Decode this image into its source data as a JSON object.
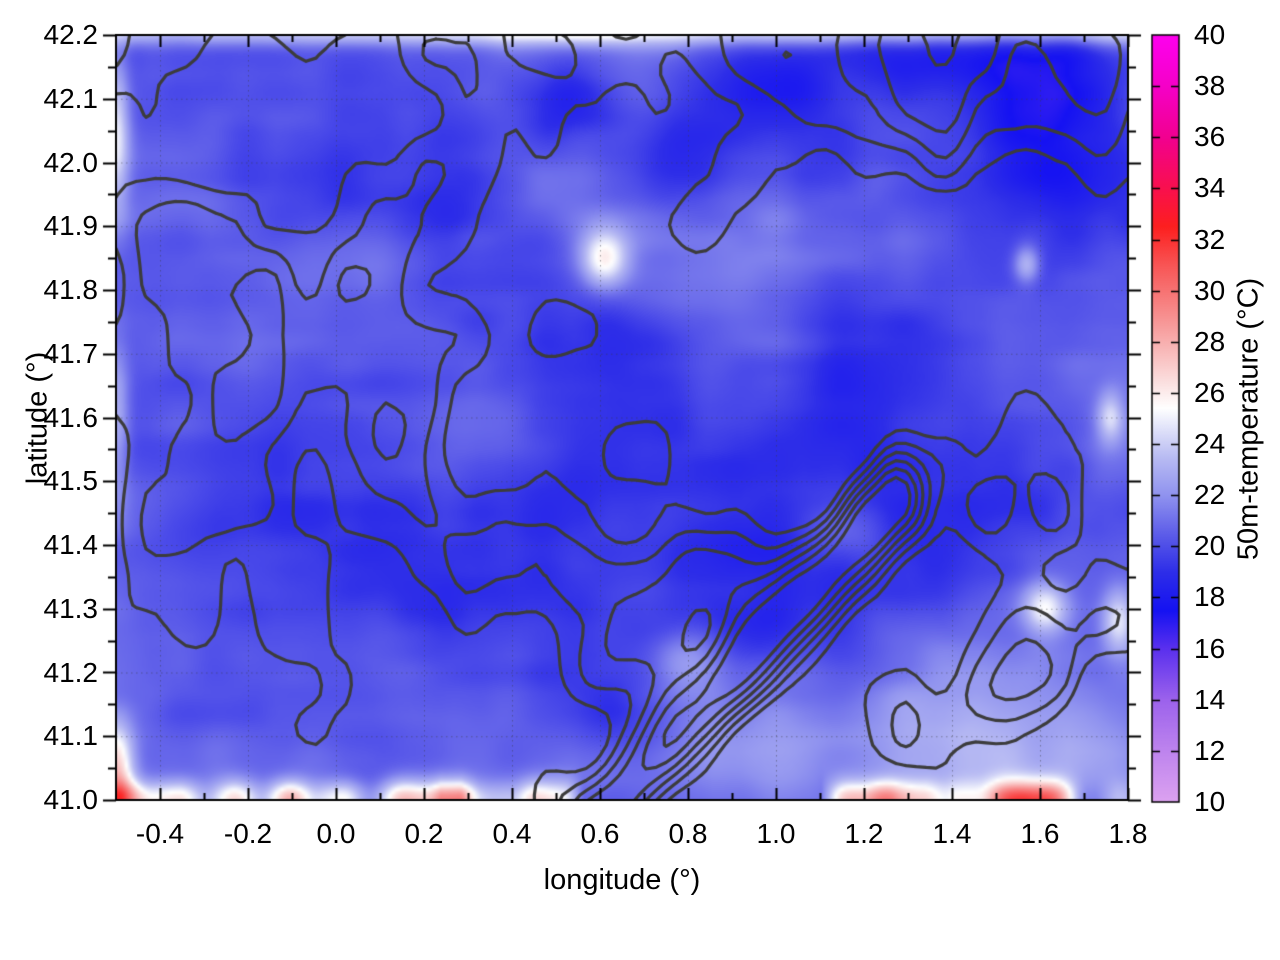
{
  "chart_data": {
    "type": "heatmap",
    "title": "",
    "xlabel": "longitude (°)",
    "ylabel": "latitude (°)",
    "colorbar_label": "50m-temperature (°C)",
    "units": "°C",
    "x_range": [
      -0.5,
      1.8
    ],
    "y_range": [
      41.0,
      42.2
    ],
    "colorbar_range": [
      10,
      40
    ],
    "grid_on": true,
    "x_major_ticks": [
      -0.4,
      -0.2,
      0.0,
      0.2,
      0.4,
      0.6,
      0.8,
      1.0,
      1.2,
      1.4,
      1.6,
      1.8
    ],
    "x_tick_labels": [
      "-0.4",
      "-0.2",
      "0.0",
      "0.2",
      "0.4",
      "0.6",
      "0.8",
      "1.0",
      "1.2",
      "1.4",
      "1.6",
      "1.8"
    ],
    "x_minor_ticks": [
      -0.3,
      -0.1,
      0.1,
      0.3,
      0.5,
      0.7,
      0.9,
      1.1,
      1.3,
      1.5,
      1.7
    ],
    "y_major_ticks": [
      41.0,
      41.1,
      41.2,
      41.3,
      41.4,
      41.5,
      41.6,
      41.7,
      41.8,
      41.9,
      42.0,
      42.1,
      42.2
    ],
    "y_tick_labels": [
      "41.0",
      "41.1",
      "41.2",
      "41.3",
      "41.4",
      "41.5",
      "41.6",
      "41.7",
      "41.8",
      "41.9",
      "42.0",
      "42.1",
      "42.2"
    ],
    "y_minor_ticks": [
      41.05,
      41.15,
      41.25,
      41.35,
      41.45,
      41.55,
      41.65,
      41.75,
      41.85,
      41.95,
      42.05,
      42.15
    ],
    "colorbar_ticks": [
      10,
      12,
      14,
      16,
      18,
      20,
      22,
      24,
      26,
      28,
      30,
      32,
      34,
      36,
      38,
      40
    ],
    "colorbar_tick_labels": [
      "10",
      "12",
      "14",
      "16",
      "18",
      "20",
      "22",
      "24",
      "26",
      "28",
      "30",
      "32",
      "34",
      "36",
      "38",
      "40"
    ],
    "palette_stops": [
      [
        10,
        "#dca2f0"
      ],
      [
        12,
        "#be84ee"
      ],
      [
        14,
        "#9c62ec"
      ],
      [
        16,
        "#5a30ee"
      ],
      [
        17.5,
        "#1512f2"
      ],
      [
        19,
        "#2e2ee8"
      ],
      [
        20.5,
        "#5e5ee9"
      ],
      [
        22,
        "#9093ef"
      ],
      [
        23.5,
        "#b9bcf3"
      ],
      [
        24.7,
        "#e4e6fa"
      ],
      [
        25.4,
        "#ffffff"
      ],
      [
        26.3,
        "#fbe3e3"
      ],
      [
        27.5,
        "#f9bebe"
      ],
      [
        29,
        "#f79090"
      ],
      [
        31,
        "#f85555"
      ],
      [
        32.5,
        "#fd1f1f"
      ],
      [
        34,
        "#f9104e"
      ],
      [
        36,
        "#f20090"
      ],
      [
        38,
        "#f500c8"
      ],
      [
        40,
        "#fe00ef"
      ]
    ],
    "contour_overlay": {
      "color": "#3c3c3c",
      "line_width": 3.2,
      "labels_shown": false
    },
    "estimated_field_grid": {
      "lon": [
        -0.4,
        -0.2,
        0.0,
        0.2,
        0.4,
        0.6,
        0.8,
        1.0,
        1.2,
        1.4,
        1.6,
        1.8
      ],
      "lat": [
        42.2,
        42.05,
        41.9,
        41.75,
        41.6,
        41.45,
        41.3,
        41.15,
        41.0
      ],
      "temperature_c": [
        [
          26,
          26,
          25,
          26,
          27,
          26,
          25,
          26,
          26,
          25,
          26,
          26
        ],
        [
          21,
          20,
          20,
          19,
          18,
          18,
          17,
          18,
          18,
          18,
          17,
          18
        ],
        [
          21,
          20,
          21,
          22,
          24,
          21,
          19,
          19,
          19,
          19,
          19,
          21
        ],
        [
          20,
          21,
          21,
          22,
          25,
          22,
          21,
          20,
          19,
          19,
          20,
          22
        ],
        [
          21,
          19,
          20,
          21,
          22,
          22,
          21,
          20,
          19,
          19,
          21,
          23
        ],
        [
          20,
          19,
          19,
          20,
          21,
          21,
          21,
          20,
          19,
          19,
          21,
          23
        ],
        [
          21,
          20,
          21,
          21,
          20,
          19,
          18,
          19,
          21,
          23,
          24,
          26
        ],
        [
          22,
          21,
          21,
          20,
          19,
          18,
          19,
          21,
          23,
          24,
          24,
          23
        ],
        [
          29,
          30,
          28,
          29,
          30,
          29,
          30,
          27,
          25,
          24,
          24,
          23
        ]
      ]
    },
    "render_model": {
      "seed_temperature": 101,
      "seed_contour": 77,
      "base_temp": 20.7,
      "noise_iso": {
        "amp": 1.5,
        "scale": 0.3
      },
      "noise_streak": {
        "amp": 1.1,
        "scale_lon": 0.55,
        "scale_lat": 0.13
      },
      "features": [
        [
          1.0,
          42.1,
          0.3,
          0.1,
          -2.6
        ],
        [
          1.62,
          42.12,
          0.15,
          0.09,
          -3.4
        ],
        [
          0.52,
          42.1,
          0.1,
          0.07,
          -2.3
        ],
        [
          0.75,
          41.99,
          0.12,
          0.07,
          -2.2
        ],
        [
          1.3,
          42.17,
          0.25,
          0.06,
          -2.0
        ],
        [
          0.3,
          41.95,
          0.22,
          0.12,
          -1.4
        ],
        [
          1.35,
          41.5,
          0.38,
          0.24,
          -1.3
        ],
        [
          0.1,
          41.45,
          0.5,
          0.32,
          -0.9
        ],
        [
          1.05,
          41.68,
          0.5,
          0.28,
          -0.9
        ],
        [
          0.95,
          41.3,
          0.11,
          0.06,
          -2.4
        ],
        [
          0.62,
          41.12,
          0.16,
          0.08,
          -2.1
        ],
        [
          1.72,
          41.95,
          0.2,
          0.2,
          -1.5
        ],
        [
          0.45,
          41.4,
          0.3,
          0.18,
          -1.0
        ],
        [
          0.61,
          41.85,
          0.055,
          0.045,
          5.4
        ],
        [
          1.45,
          41.08,
          0.42,
          0.16,
          2.6
        ],
        [
          0.95,
          41.32,
          0.1,
          0.05,
          2.2
        ],
        [
          1.15,
          41.42,
          0.1,
          0.05,
          2.2
        ],
        [
          0.8,
          41.22,
          0.08,
          0.05,
          2.0
        ],
        [
          -0.5,
          42.05,
          0.03,
          0.13,
          4.2
        ],
        [
          -0.5,
          41.6,
          0.03,
          0.12,
          3.0
        ],
        [
          -0.5,
          41.05,
          0.04,
          0.07,
          6.5
        ],
        [
          1.61,
          41.3,
          0.05,
          0.04,
          5.0
        ],
        [
          1.78,
          41.28,
          0.04,
          0.05,
          4.5
        ],
        [
          1.76,
          41.6,
          0.03,
          0.04,
          3.5
        ],
        [
          1.57,
          41.84,
          0.03,
          0.03,
          3.5
        ],
        [
          0.35,
          41.55,
          0.2,
          0.1,
          1.2
        ]
      ],
      "top_band": {
        "lat": 42.21,
        "width": 0.025,
        "amp": 6.4
      },
      "bottom_band": {
        "lat": 41.0,
        "width": 0.03,
        "amp": 9.0
      },
      "contour_levels": [
        0.64,
        0.76,
        0.88,
        1.0,
        1.12,
        1.24
      ],
      "contour_scale": 0.36,
      "contour_bumps": [
        [
          42.3,
          0.33,
          0.4,
          "lat-band"
        ],
        [
          0.05,
          41.52,
          0.45,
          0.3,
          0.3
        ],
        [
          0.62,
          41.24,
          0.17,
          0.13,
          0.32
        ],
        [
          0.85,
          41.33,
          0.2,
          0.1,
          0.3
        ],
        [
          1.5,
          41.52,
          0.26,
          0.16,
          0.36
        ]
      ],
      "contour_ridges": [
        [
          0.6,
          40.97,
          1.27,
          41.47,
          0.075,
          0.85
        ],
        [
          0.9,
          40.98,
          1.82,
          41.28,
          0.1,
          0.3
        ]
      ]
    }
  }
}
